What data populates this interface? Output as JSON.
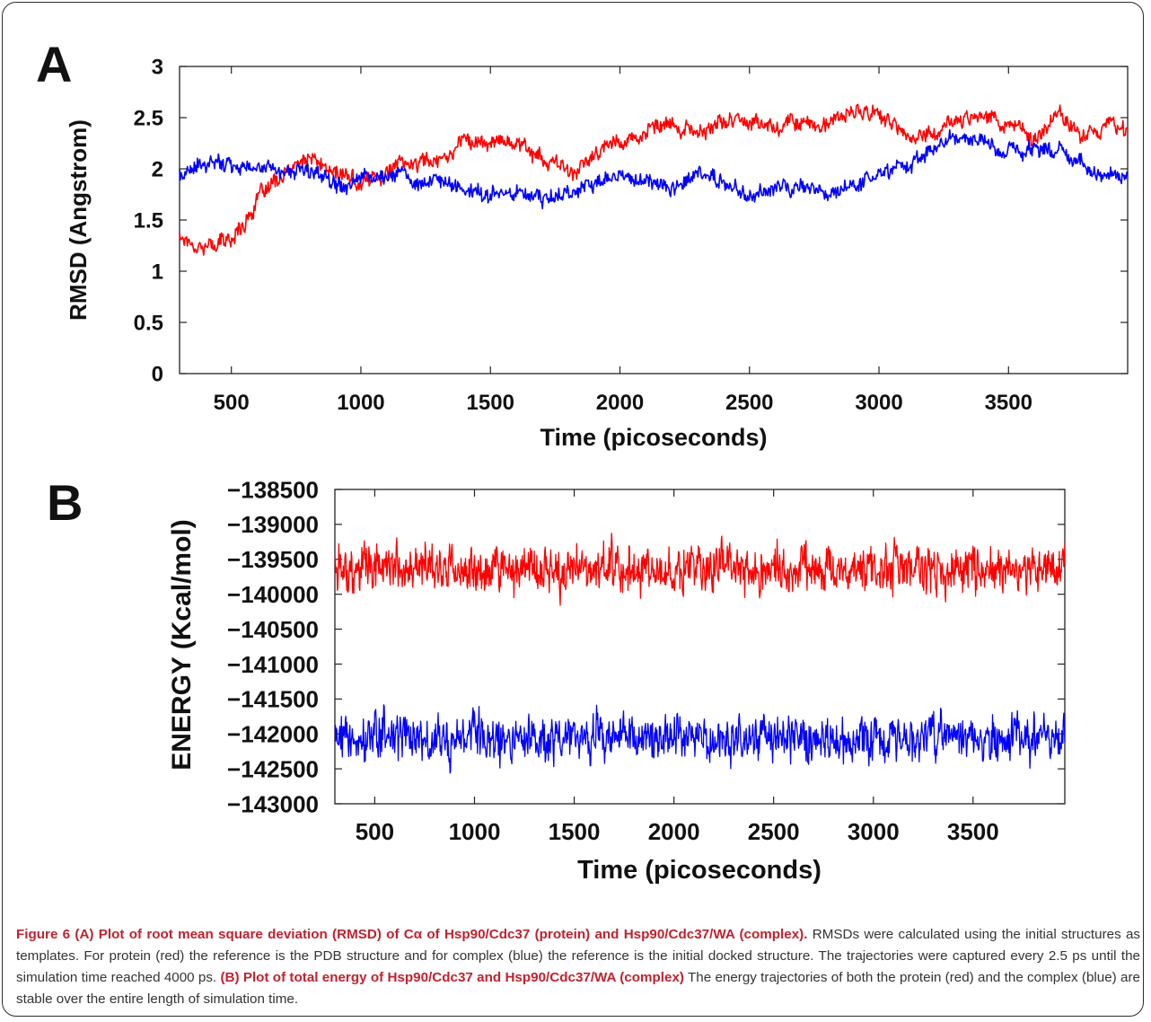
{
  "panels": {
    "a_label": "A",
    "b_label": "B"
  },
  "colors": {
    "protein": "#ff0000",
    "complex": "#0000ff",
    "caption_emphasis": "#c0222e"
  },
  "chart_data": [
    {
      "type": "line",
      "panel": "A",
      "xlabel": "Time (picoseconds)",
      "ylabel": "RMSD (Angstrom)",
      "xlim": [
        300,
        3960
      ],
      "ylim": [
        0,
        3
      ],
      "xticks": [
        "500",
        "1000",
        "1500",
        "2000",
        "2500",
        "3000",
        "3500"
      ],
      "yticks": [
        "0",
        "0.5",
        "1",
        "1.5",
        "2",
        "2.5",
        "3"
      ],
      "grid": false,
      "series": [
        {
          "color": "#ff0000",
          "x": [
            300,
            400,
            500,
            600,
            700,
            800,
            900,
            1000,
            1100,
            1200,
            1300,
            1400,
            1500,
            1600,
            1700,
            1800,
            1900,
            2000,
            2100,
            2200,
            2300,
            2400,
            2500,
            2600,
            2700,
            2800,
            2900,
            3000,
            3100,
            3200,
            3300,
            3400,
            3500,
            3600,
            3700,
            3800,
            3900,
            3960
          ],
          "values": [
            1.35,
            1.25,
            1.3,
            1.7,
            1.9,
            2.1,
            1.95,
            1.85,
            2.0,
            2.05,
            2.1,
            2.3,
            2.25,
            2.3,
            2.1,
            1.95,
            2.1,
            2.3,
            2.35,
            2.4,
            2.35,
            2.45,
            2.5,
            2.4,
            2.5,
            2.4,
            2.55,
            2.55,
            2.3,
            2.35,
            2.45,
            2.6,
            2.4,
            2.3,
            2.55,
            2.35,
            2.45,
            2.35
          ]
        },
        {
          "color": "#0000ff",
          "x": [
            300,
            400,
            500,
            600,
            700,
            800,
            900,
            1000,
            1100,
            1200,
            1300,
            1400,
            1500,
            1600,
            1700,
            1800,
            1900,
            2000,
            2100,
            2200,
            2300,
            2400,
            2500,
            2600,
            2700,
            2800,
            2900,
            3000,
            3100,
            3200,
            3300,
            3400,
            3500,
            3600,
            3700,
            3800,
            3900,
            3960
          ],
          "values": [
            1.95,
            2.0,
            2.1,
            2.0,
            2.0,
            1.95,
            1.9,
            1.95,
            1.95,
            1.9,
            1.85,
            1.8,
            1.75,
            1.8,
            1.7,
            1.8,
            1.85,
            1.9,
            1.85,
            1.85,
            1.95,
            1.85,
            1.75,
            1.8,
            1.8,
            1.75,
            1.85,
            1.95,
            2.05,
            2.15,
            2.3,
            2.2,
            2.15,
            2.2,
            2.25,
            2.0,
            1.95,
            1.9
          ]
        }
      ]
    },
    {
      "type": "line",
      "panel": "B",
      "xlabel": "Time (picoseconds)",
      "ylabel": "ENERGY (Kcal/mol)",
      "xlim": [
        300,
        3960
      ],
      "ylim": [
        -143000,
        -138500
      ],
      "xticks": [
        "500",
        "1000",
        "1500",
        "2000",
        "2500",
        "3000",
        "3500"
      ],
      "yticks": [
        "−143000",
        "−142500",
        "−142000",
        "−141500",
        "−141000",
        "−140500",
        "−140000",
        "−139500",
        "−139000",
        "−138500"
      ],
      "grid": false,
      "series": [
        {
          "color": "#ff0000",
          "mean": -139650,
          "min": -140350,
          "max": -138850
        },
        {
          "color": "#0000ff",
          "mean": -142050,
          "min": -142750,
          "max": -141300
        }
      ]
    }
  ],
  "caption": {
    "fig_label": "Figure 6",
    "a_title": "(A) Plot of root mean square deviation (RMSD) of Cα of Hsp90/Cdc37 (protein) and Hsp90/Cdc37/WA (complex).",
    "a_text": "RMSDs were calculated using the initial structures as templates. For protein (red) the reference is the PDB structure and for complex (blue) the reference is the initial docked structure. The trajectories were captured every 2.5 ps until the simulation time reached 4000 ps.",
    "b_title": "(B) Plot of total energy of Hsp90/Cdc37 and Hsp90/Cdc37/WA (complex)",
    "b_text": "The energy trajectories of both the protein (red) and the complex (blue) are stable over the entire length of simulation time."
  }
}
